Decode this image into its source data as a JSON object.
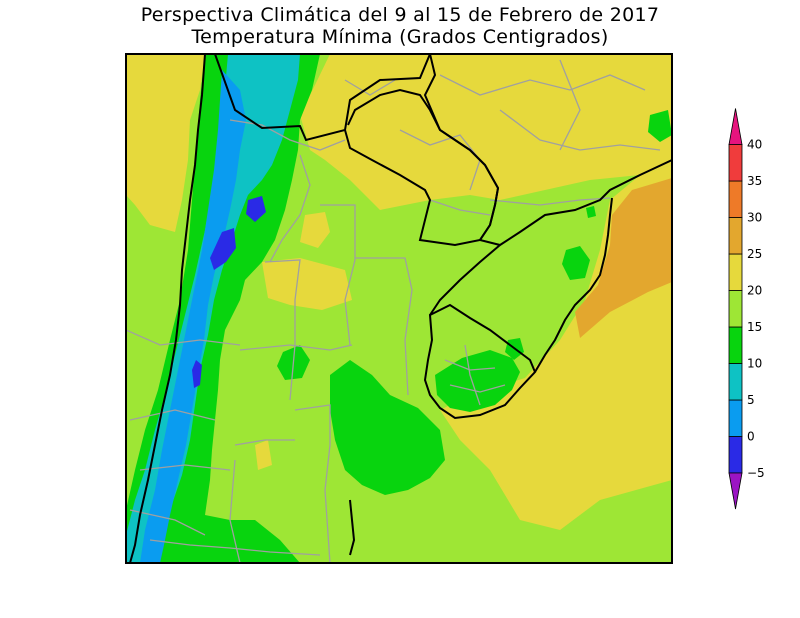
{
  "title": {
    "line1": "Perspectiva Climática del 9 al 15 de Febrero de 2017",
    "line2": "Temperatura Mínima (Grados Centigrados)"
  },
  "colorbar": {
    "levels": [
      {
        "label": "−5",
        "color": "#2a2ae6"
      },
      {
        "label": "0",
        "color": "#0a9cf0"
      },
      {
        "label": "5",
        "color": "#0ec2c4"
      },
      {
        "label": "10",
        "color": "#08d40e"
      },
      {
        "label": "15",
        "color": "#9ee635"
      },
      {
        "label": "20",
        "color": "#e6d93c"
      },
      {
        "label": "25",
        "color": "#e3a72e"
      },
      {
        "label": "30",
        "color": "#ee7a28"
      },
      {
        "label": "35",
        "color": "#f03c3c"
      },
      {
        "label": "40",
        "color": "#ea1c74"
      }
    ],
    "under_color": "#9b14c4",
    "over_color": "#e6147e"
  },
  "map_colors": {
    "border": "#000000",
    "province_lines": "#a0a0a0",
    "frame": "#000000"
  }
}
